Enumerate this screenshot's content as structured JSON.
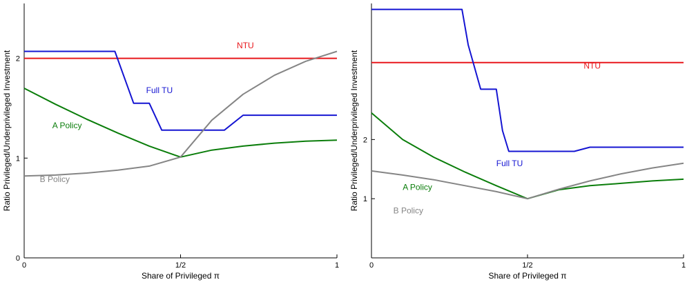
{
  "colors": {
    "ntu": "#e8171b",
    "full_tu": "#1414d2",
    "a_policy": "#0a7d0a",
    "b_policy": "#858585",
    "axis": "#000000"
  },
  "chart_data": [
    {
      "type": "line",
      "xlabel": "Share of Privileged π",
      "ylabel": "Ratio Privileged/Underprivileged Investment",
      "xlim": [
        0,
        1
      ],
      "ylim": [
        0,
        2.55
      ],
      "x_ticks": [
        {
          "value": 0,
          "label": "0"
        },
        {
          "value": 0.5,
          "label": "1/2"
        },
        {
          "value": 1,
          "label": "1"
        }
      ],
      "y_ticks": [
        {
          "value": 0,
          "label": "0"
        },
        {
          "value": 1,
          "label": "1"
        },
        {
          "value": 2,
          "label": "2"
        }
      ],
      "grid": false,
      "series": [
        {
          "name": "NTU",
          "color_key": "ntu",
          "label_at": [
            0.68,
            2.1
          ],
          "x": [
            0,
            1
          ],
          "y": [
            2.0,
            2.0
          ]
        },
        {
          "name": "Full TU",
          "color_key": "full_tu",
          "label_at": [
            0.39,
            1.65
          ],
          "x": [
            0,
            0.29,
            0.35,
            0.38,
            0.4,
            0.44,
            0.47,
            0.5,
            0.58,
            0.64,
            0.7,
            0.8,
            1
          ],
          "y": [
            2.07,
            2.07,
            1.55,
            1.55,
            1.55,
            1.28,
            1.28,
            1.28,
            1.28,
            1.28,
            1.43,
            1.43,
            1.43
          ]
        },
        {
          "name": "A Policy",
          "color_key": "a_policy",
          "label_at": [
            0.09,
            1.3
          ],
          "x": [
            0,
            0.1,
            0.2,
            0.3,
            0.4,
            0.5,
            0.6,
            0.7,
            0.8,
            0.9,
            1
          ],
          "y": [
            1.7,
            1.54,
            1.39,
            1.25,
            1.12,
            1.01,
            1.08,
            1.12,
            1.15,
            1.17,
            1.18
          ]
        },
        {
          "name": "B Policy",
          "color_key": "b_policy",
          "label_at": [
            0.05,
            0.76
          ],
          "x": [
            0,
            0.1,
            0.2,
            0.3,
            0.4,
            0.5,
            0.6,
            0.7,
            0.8,
            0.9,
            1
          ],
          "y": [
            0.82,
            0.83,
            0.85,
            0.88,
            0.92,
            1.01,
            1.38,
            1.64,
            1.83,
            1.97,
            2.07
          ]
        }
      ]
    },
    {
      "type": "line",
      "xlabel": "Share of Privileged π",
      "ylabel": "Ratio Privileged/Underprivileged Investment",
      "xlim": [
        0,
        1
      ],
      "ylim": [
        0,
        4.3
      ],
      "x_ticks": [
        {
          "value": 0,
          "label": "0"
        },
        {
          "value": 0.5,
          "label": "1/2"
        },
        {
          "value": 1,
          "label": "1"
        }
      ],
      "y_ticks": [
        {
          "value": 1,
          "label": "1"
        },
        {
          "value": 2,
          "label": "2"
        }
      ],
      "grid": false,
      "series": [
        {
          "name": "NTU",
          "color_key": "ntu",
          "label_at": [
            0.68,
            3.2
          ],
          "x": [
            0,
            1
          ],
          "y": [
            3.3,
            3.3
          ]
        },
        {
          "name": "Full TU",
          "color_key": "full_tu",
          "label_at": [
            0.4,
            1.55
          ],
          "x": [
            0,
            0.29,
            0.31,
            0.35,
            0.38,
            0.4,
            0.42,
            0.44,
            0.5,
            0.6,
            0.65,
            0.7,
            0.8,
            1
          ],
          "y": [
            4.2,
            4.2,
            3.6,
            2.85,
            2.85,
            2.85,
            2.15,
            1.8,
            1.8,
            1.8,
            1.8,
            1.87,
            1.87,
            1.87
          ]
        },
        {
          "name": "A Policy",
          "color_key": "a_policy",
          "label_at": [
            0.1,
            1.15
          ],
          "x": [
            0,
            0.1,
            0.2,
            0.3,
            0.4,
            0.5,
            0.6,
            0.7,
            0.8,
            0.9,
            1
          ],
          "y": [
            2.45,
            2.0,
            1.7,
            1.45,
            1.22,
            1.0,
            1.15,
            1.22,
            1.26,
            1.3,
            1.33
          ]
        },
        {
          "name": "B Policy",
          "color_key": "b_policy",
          "label_at": [
            0.07,
            0.75
          ],
          "x": [
            0,
            0.1,
            0.2,
            0.3,
            0.4,
            0.5,
            0.6,
            0.7,
            0.8,
            0.9,
            1
          ],
          "y": [
            1.47,
            1.4,
            1.32,
            1.22,
            1.12,
            1.0,
            1.16,
            1.3,
            1.42,
            1.52,
            1.6
          ]
        }
      ]
    }
  ]
}
